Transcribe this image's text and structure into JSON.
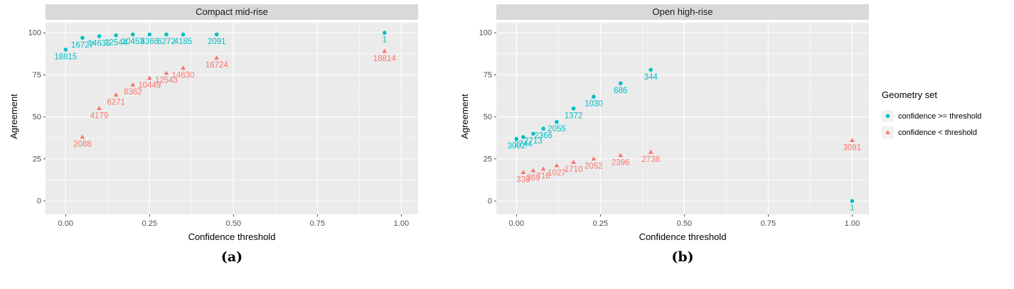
{
  "legend": {
    "title": "Geometry set",
    "items": [
      {
        "label": "confidence >= threshold",
        "marker": "circle",
        "color": "#00BFC4"
      },
      {
        "label": "confidence < threshold",
        "marker": "triangle",
        "color": "#F8766D"
      }
    ]
  },
  "style_colors": {
    "panel_background": "#EBEBEB",
    "strip_background": "#D9D9D9",
    "gridline": "#FFFFFF",
    "tick_text": "#4D4D4D"
  },
  "chart_data": [
    {
      "type": "scatter",
      "title": "Compact mid-rise",
      "xlabel": "Confidence threshold",
      "ylabel": "Agreement",
      "caption": "(a)",
      "xlim": [
        -0.06,
        1.05
      ],
      "ylim": [
        -8,
        106
      ],
      "xticks": [
        0.0,
        0.25,
        0.5,
        0.75,
        1.0
      ],
      "xtick_labels": [
        "0.00",
        "0.25",
        "0.50",
        "0.75",
        "1.00"
      ],
      "yticks": [
        0,
        25,
        50,
        75,
        100
      ],
      "ytick_labels": [
        "0",
        "25",
        "50",
        "75",
        "100"
      ],
      "grid": true,
      "legend_position": "right-outside",
      "series": [
        {
          "name": "confidence >= threshold",
          "marker": "circle",
          "color": "#00BFC4",
          "points": [
            {
              "x": 0.0,
              "y": 90,
              "label": "18815"
            },
            {
              "x": 0.05,
              "y": 97,
              "label": "16727"
            },
            {
              "x": 0.1,
              "y": 98,
              "label": "14636"
            },
            {
              "x": 0.15,
              "y": 98.5,
              "label": "12544"
            },
            {
              "x": 0.2,
              "y": 99,
              "label": "10453"
            },
            {
              "x": 0.25,
              "y": 99,
              "label": "8366"
            },
            {
              "x": 0.3,
              "y": 99,
              "label": "6272"
            },
            {
              "x": 0.35,
              "y": 99,
              "label": "4185"
            },
            {
              "x": 0.45,
              "y": 99,
              "label": "2091"
            },
            {
              "x": 0.95,
              "y": 100,
              "label": "1"
            }
          ]
        },
        {
          "name": "confidence < threshold",
          "marker": "triangle",
          "color": "#F8766D",
          "points": [
            {
              "x": 0.05,
              "y": 38,
              "label": "2088"
            },
            {
              "x": 0.1,
              "y": 55,
              "label": "4179"
            },
            {
              "x": 0.15,
              "y": 63,
              "label": "6271"
            },
            {
              "x": 0.2,
              "y": 69,
              "label": "8362"
            },
            {
              "x": 0.25,
              "y": 73,
              "label": "10449"
            },
            {
              "x": 0.3,
              "y": 76,
              "label": "12543"
            },
            {
              "x": 0.35,
              "y": 79,
              "label": "14630"
            },
            {
              "x": 0.45,
              "y": 85,
              "label": "16724"
            },
            {
              "x": 0.95,
              "y": 89,
              "label": "18814"
            }
          ]
        }
      ]
    },
    {
      "type": "scatter",
      "title": "Open high-rise",
      "xlabel": "Confidence threshold",
      "ylabel": "Agreement",
      "caption": "(b)",
      "xlim": [
        -0.06,
        1.05
      ],
      "ylim": [
        -8,
        106
      ],
      "xticks": [
        0.0,
        0.25,
        0.5,
        0.75,
        1.0
      ],
      "xtick_labels": [
        "0.00",
        "0.25",
        "0.50",
        "0.75",
        "1.00"
      ],
      "yticks": [
        0,
        25,
        50,
        75,
        100
      ],
      "ytick_labels": [
        "0",
        "25",
        "50",
        "75",
        "100"
      ],
      "grid": true,
      "legend_position": "right-outside",
      "series": [
        {
          "name": "confidence >= threshold",
          "marker": "circle",
          "color": "#00BFC4",
          "points": [
            {
              "x": 0.0,
              "y": 37,
              "label": "3082"
            },
            {
              "x": 0.02,
              "y": 38,
              "label": "2744"
            },
            {
              "x": 0.05,
              "y": 40,
              "label": "2713"
            },
            {
              "x": 0.08,
              "y": 43,
              "label": "2366"
            },
            {
              "x": 0.12,
              "y": 47,
              "label": "2055"
            },
            {
              "x": 0.17,
              "y": 55,
              "label": "1372"
            },
            {
              "x": 0.23,
              "y": 62,
              "label": "1030"
            },
            {
              "x": 0.31,
              "y": 70,
              "label": "686"
            },
            {
              "x": 0.4,
              "y": 78,
              "label": "344"
            },
            {
              "x": 1.0,
              "y": 0,
              "label": "1"
            }
          ]
        },
        {
          "name": "confidence < threshold",
          "marker": "triangle",
          "color": "#F8766D",
          "points": [
            {
              "x": 0.02,
              "y": 17,
              "label": "338"
            },
            {
              "x": 0.05,
              "y": 18,
              "label": "369"
            },
            {
              "x": 0.08,
              "y": 19,
              "label": "716"
            },
            {
              "x": 0.12,
              "y": 21,
              "label": "1027"
            },
            {
              "x": 0.17,
              "y": 23,
              "label": "1710"
            },
            {
              "x": 0.23,
              "y": 25,
              "label": "2052"
            },
            {
              "x": 0.31,
              "y": 27,
              "label": "2396"
            },
            {
              "x": 0.4,
              "y": 29,
              "label": "2738"
            },
            {
              "x": 1.0,
              "y": 36,
              "label": "3081"
            }
          ]
        }
      ]
    }
  ]
}
